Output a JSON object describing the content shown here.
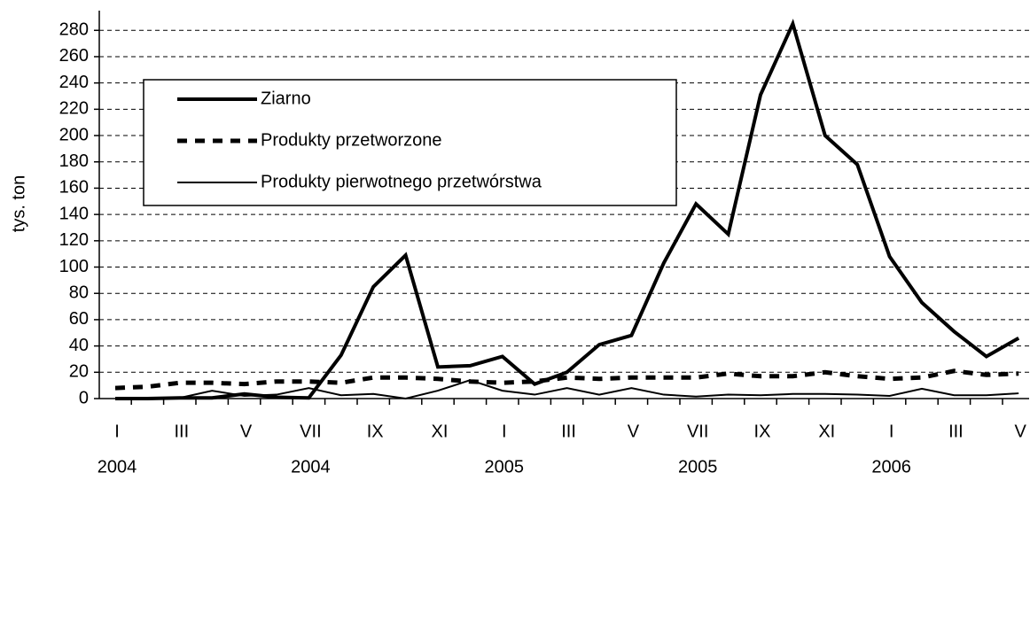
{
  "chart_data": {
    "type": "line",
    "y_label": "tys. ton",
    "categories": [
      "I",
      null,
      "III",
      null,
      "V",
      null,
      "VII",
      null,
      "IX",
      null,
      "XI",
      null,
      "I",
      null,
      "III",
      null,
      "V",
      null,
      "VII",
      null,
      "IX",
      null,
      "XI",
      null,
      "I",
      null,
      "III",
      null,
      "V"
    ],
    "years": [
      "2004",
      null,
      null,
      null,
      null,
      null,
      "2004",
      null,
      null,
      null,
      null,
      null,
      "2005",
      null,
      null,
      null,
      null,
      null,
      "2005",
      null,
      null,
      null,
      null,
      null,
      "2006",
      null,
      null,
      null,
      null
    ],
    "series": [
      {
        "name": "Ziarno",
        "color": "#000000",
        "values": [
          0,
          0,
          0.5,
          0.5,
          3.5,
          1,
          0.5,
          33,
          85,
          109,
          24,
          25,
          32,
          11,
          20,
          41,
          48,
          103,
          148,
          125,
          231,
          285,
          200,
          178,
          108,
          73,
          51,
          32,
          46
        ]
      },
      {
        "name": "Produkty przetworzone",
        "color": "#000000",
        "values": [
          8,
          9,
          12,
          12,
          11,
          13,
          13,
          12,
          16,
          16,
          15,
          13,
          12,
          13,
          16,
          15,
          16,
          16,
          16,
          19,
          17,
          17,
          20,
          17,
          15,
          16,
          21,
          18,
          19
        ]
      },
      {
        "name": "Produkty pierwotnego przetwórstwa",
        "color": "#000000",
        "values": [
          0,
          0,
          0.5,
          6,
          2,
          3,
          8,
          2.5,
          3.5,
          0,
          6,
          14,
          6,
          3,
          8,
          3,
          8,
          3,
          1.5,
          3,
          2.5,
          3.5,
          3.5,
          3,
          2,
          7.5,
          2.5,
          2.5,
          4
        ]
      }
    ],
    "ylim": [
      0,
      295
    ],
    "yticks": [
      0,
      20,
      40,
      60,
      80,
      100,
      120,
      140,
      160,
      180,
      200,
      220,
      240,
      260,
      280
    ],
    "grid": true
  }
}
